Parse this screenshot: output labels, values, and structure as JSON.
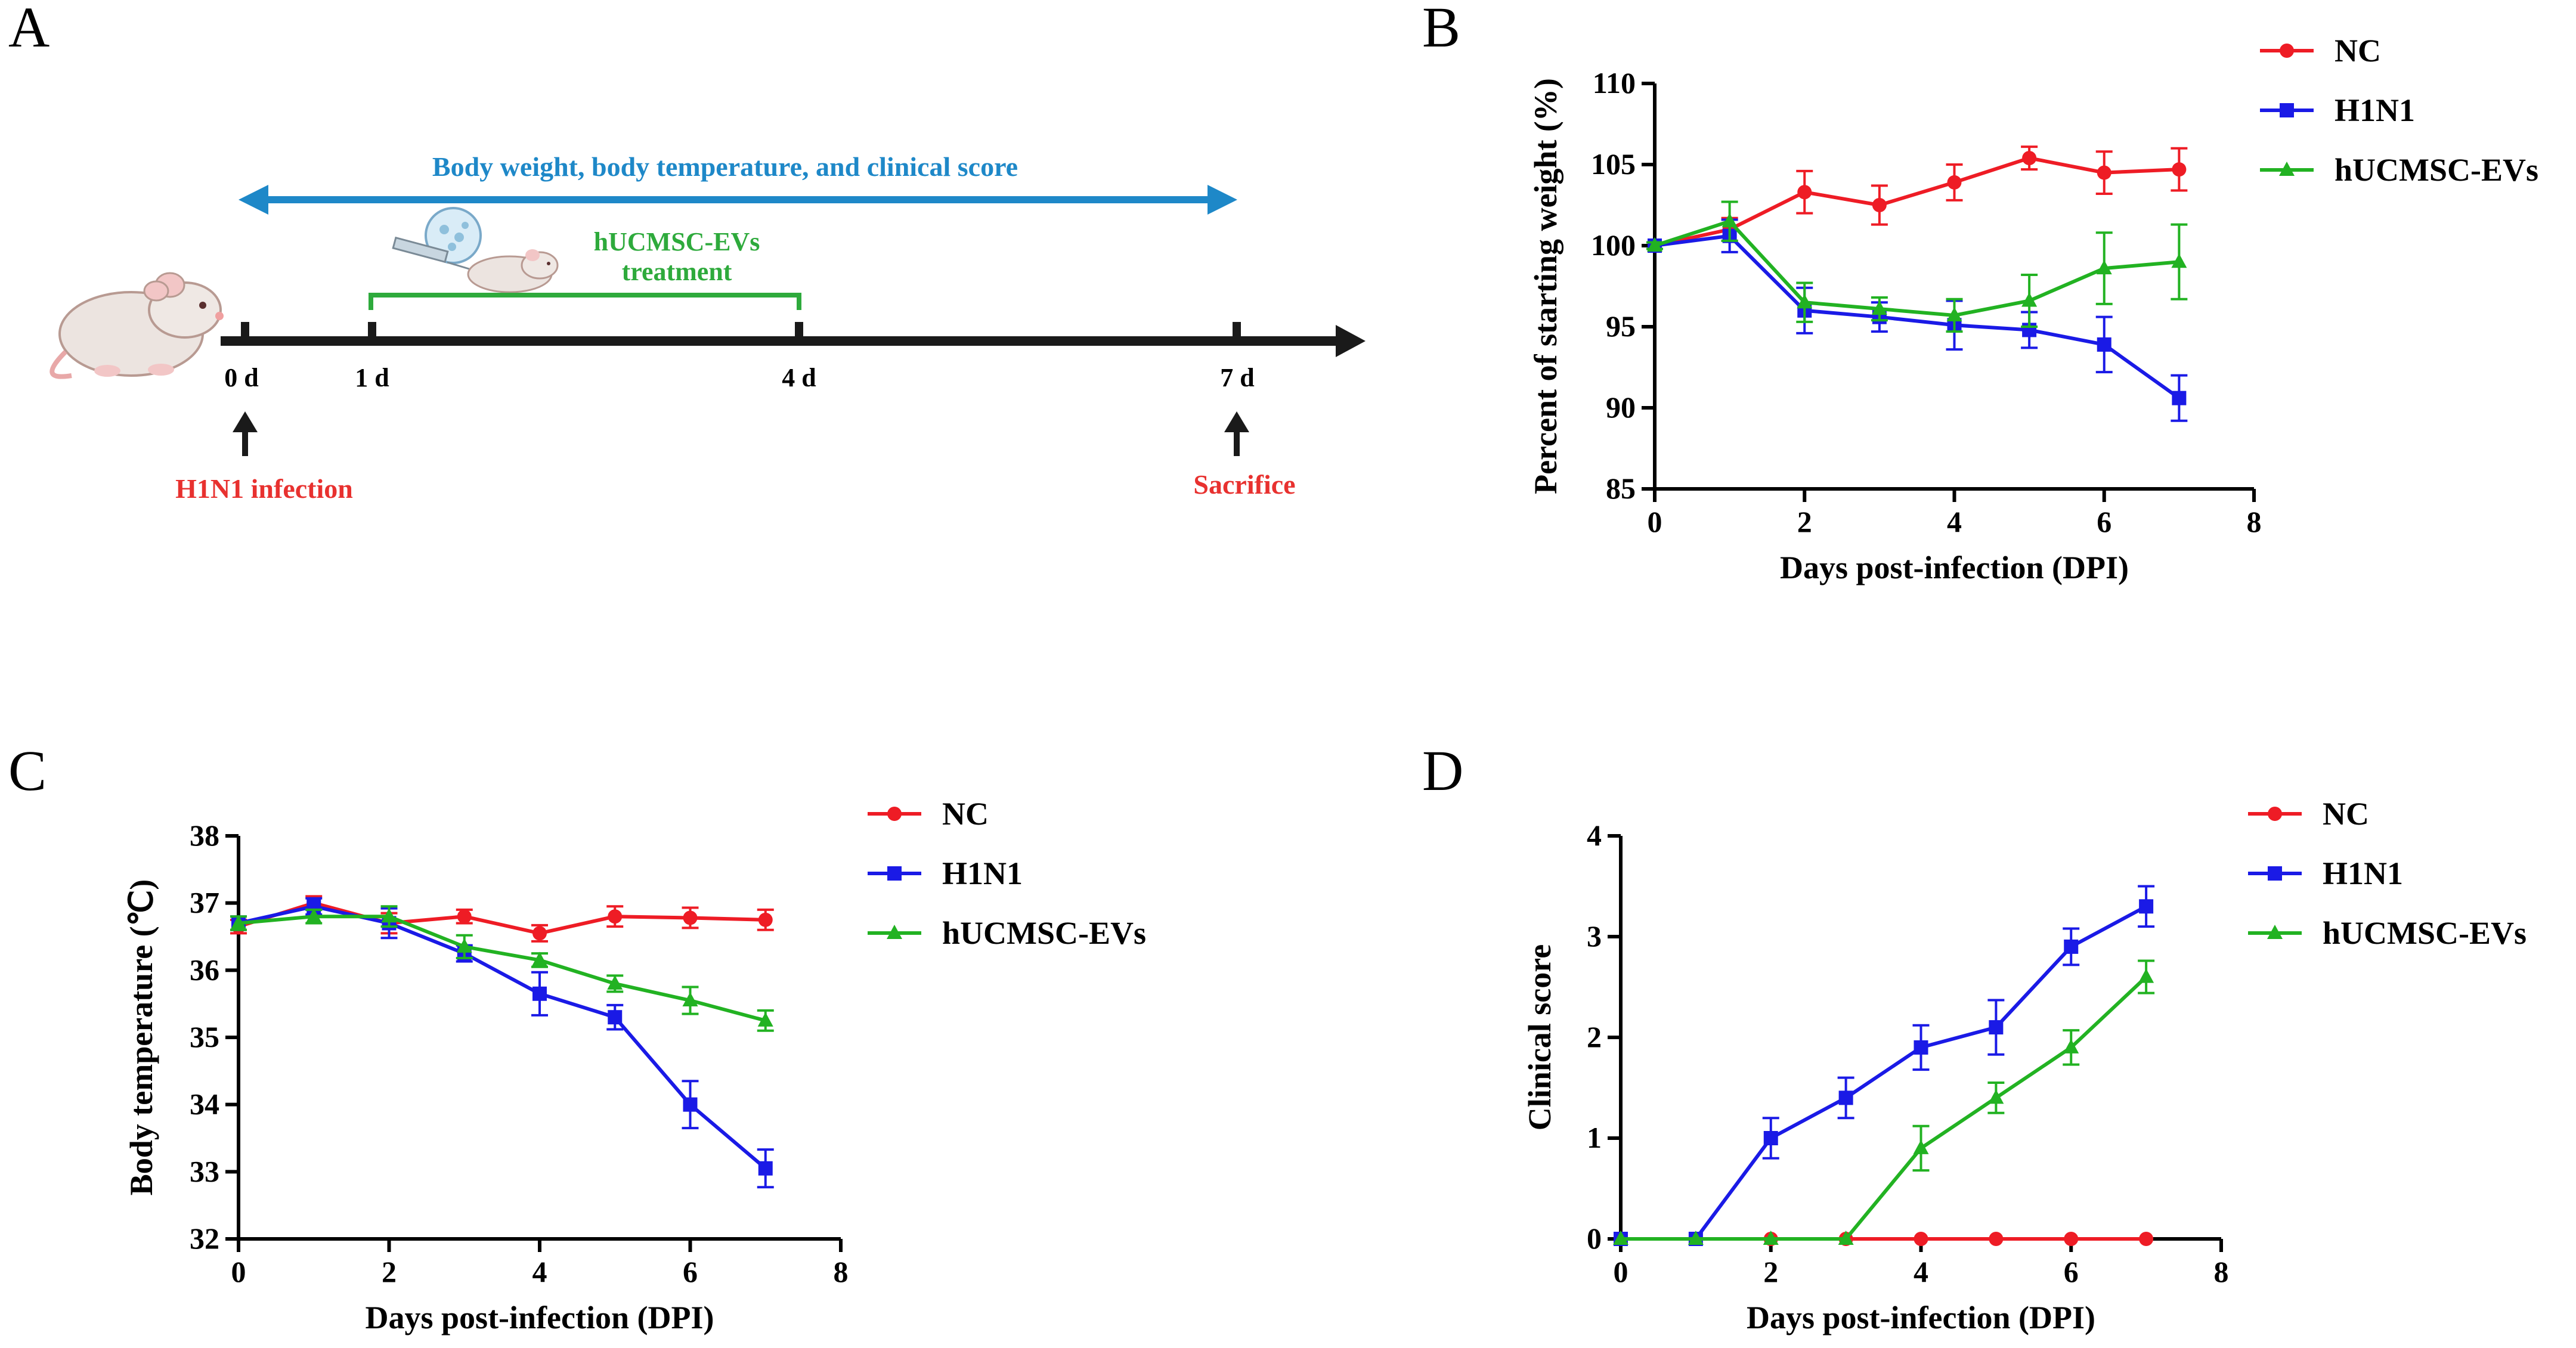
{
  "colors": {
    "nc": "#ee1c25",
    "h1n1": "#1a1ae6",
    "ev": "#22b222",
    "timeline_arrow": "#1e88c8",
    "infection_red": "#e8312f",
    "treatment_green": "#2eaa3c",
    "axis": "#000000"
  },
  "panel_a": {
    "letter": "A",
    "span_label": "Body weight, body temperature, and clinical score",
    "treatment_label_line1": "hUCMSC-EVs",
    "treatment_label_line2": "treatment",
    "tick_labels": [
      "0 d",
      "1 d",
      "4 d",
      "7 d"
    ],
    "infection_label": "H1N1 infection",
    "sacrifice_label": "Sacrifice"
  },
  "legend_labels": [
    "NC",
    "H1N1",
    "hUCMSC-EVs"
  ],
  "chart_data": [
    {
      "panel": "B",
      "type": "line",
      "title": "",
      "xlabel": "Days post-infection (DPI)",
      "ylabel": "Percent of starting weight (%)",
      "xlim": [
        0,
        8
      ],
      "ylim": [
        85,
        110
      ],
      "xticks": [
        0,
        2,
        4,
        6,
        8
      ],
      "yticks": [
        85,
        90,
        95,
        100,
        105,
        110
      ],
      "x": [
        0,
        1,
        2,
        3,
        4,
        5,
        6,
        7
      ],
      "series": [
        {
          "name": "NC",
          "marker": "circle",
          "values": [
            100,
            101,
            103.3,
            102.5,
            103.9,
            105.4,
            104.5,
            104.7
          ],
          "errors": [
            0.2,
            0.7,
            1.3,
            1.2,
            1.1,
            0.7,
            1.3,
            1.3
          ]
        },
        {
          "name": "H1N1",
          "marker": "square",
          "values": [
            100,
            100.6,
            96.0,
            95.6,
            95.1,
            94.8,
            93.9,
            90.6
          ],
          "errors": [
            0.2,
            1.0,
            1.4,
            0.9,
            1.5,
            1.1,
            1.7,
            1.4
          ]
        },
        {
          "name": "hUCMSC-EVs",
          "marker": "triangle",
          "values": [
            100,
            101.5,
            96.5,
            96.1,
            95.7,
            96.6,
            98.6,
            99.0
          ],
          "errors": [
            0.2,
            1.2,
            1.2,
            0.7,
            1.0,
            1.6,
            2.2,
            2.3
          ]
        }
      ]
    },
    {
      "panel": "C",
      "type": "line",
      "title": "",
      "xlabel": "Days post-infection (DPI)",
      "ylabel": "Body temperature (℃)",
      "xlim": [
        0,
        8
      ],
      "ylim": [
        32,
        38
      ],
      "xticks": [
        0,
        2,
        4,
        6,
        8
      ],
      "yticks": [
        32,
        33,
        34,
        35,
        36,
        37,
        38
      ],
      "x": [
        0,
        1,
        2,
        3,
        4,
        5,
        6,
        7
      ],
      "series": [
        {
          "name": "NC",
          "marker": "circle",
          "values": [
            36.65,
            37.0,
            36.7,
            36.8,
            36.55,
            36.8,
            36.78,
            36.75
          ],
          "errors": [
            0.1,
            0.1,
            0.15,
            0.1,
            0.12,
            0.15,
            0.15,
            0.15
          ]
        },
        {
          "name": "H1N1",
          "marker": "square",
          "values": [
            36.7,
            36.95,
            36.7,
            36.25,
            35.65,
            35.3,
            34.0,
            33.05
          ],
          "errors": [
            0.1,
            0.12,
            0.22,
            0.12,
            0.32,
            0.18,
            0.35,
            0.28
          ]
        },
        {
          "name": "hUCMSC-EVs",
          "marker": "triangle",
          "values": [
            36.7,
            36.8,
            36.8,
            36.35,
            36.15,
            35.8,
            35.55,
            35.25
          ],
          "errors": [
            0.1,
            0.1,
            0.15,
            0.17,
            0.1,
            0.12,
            0.2,
            0.15
          ]
        }
      ]
    },
    {
      "panel": "D",
      "type": "line",
      "title": "",
      "xlabel": "Days post-infection (DPI)",
      "ylabel": "Clinical score",
      "xlim": [
        0,
        8
      ],
      "ylim": [
        0,
        4
      ],
      "xticks": [
        0,
        2,
        4,
        6,
        8
      ],
      "yticks": [
        0,
        1,
        2,
        3,
        4
      ],
      "x": [
        0,
        1,
        2,
        3,
        4,
        5,
        6,
        7
      ],
      "series": [
        {
          "name": "NC",
          "marker": "circle",
          "values": [
            0,
            0,
            0,
            0,
            0,
            0,
            0,
            0
          ],
          "errors": [
            0,
            0,
            0,
            0,
            0,
            0,
            0,
            0
          ]
        },
        {
          "name": "H1N1",
          "marker": "square",
          "values": [
            0,
            0,
            1.0,
            1.4,
            1.9,
            2.1,
            2.9,
            3.3
          ],
          "errors": [
            0,
            0,
            0.2,
            0.2,
            0.22,
            0.27,
            0.18,
            0.2
          ]
        },
        {
          "name": "hUCMSC-EVs",
          "marker": "triangle",
          "values": [
            0,
            0,
            0,
            0,
            0.9,
            1.4,
            1.9,
            2.6
          ],
          "errors": [
            0,
            0,
            0,
            0,
            0.22,
            0.15,
            0.17,
            0.16
          ]
        }
      ]
    }
  ]
}
